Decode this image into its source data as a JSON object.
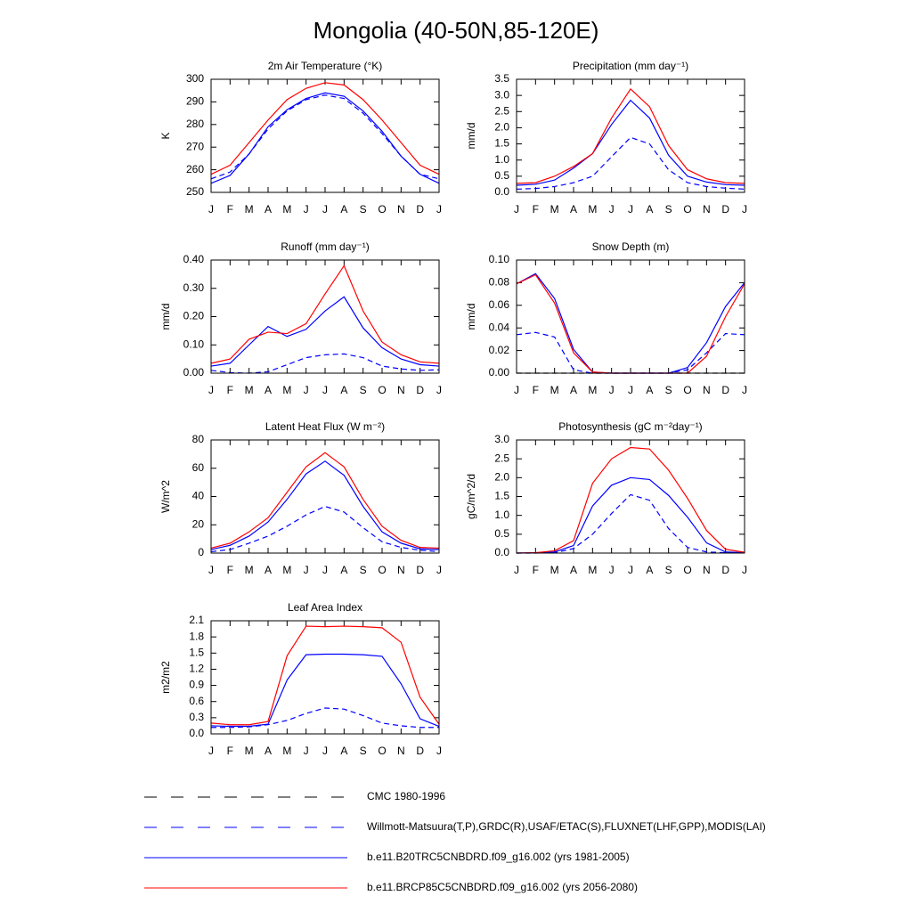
{
  "title": "Mongolia (40-50N,85-120E)",
  "chart_data": [
    {
      "type": "line",
      "title": "2m Air Temperature (°K)",
      "ylabel": "K",
      "categories": [
        "J",
        "F",
        "M",
        "A",
        "M",
        "J",
        "J",
        "A",
        "S",
        "O",
        "N",
        "D",
        "J"
      ],
      "ylim": [
        250,
        300
      ],
      "yticks": [
        250,
        260,
        270,
        280,
        290,
        300
      ],
      "series": [
        {
          "name": "Willmott-Matsuura(T,P),GRDC(R),USAF/ETAC(S),FLUXNET(LHF,GPP),MODIS(LAI)",
          "color": "#0000ff",
          "dash": true,
          "values": [
            256,
            259,
            267,
            278,
            286,
            291,
            293,
            291.5,
            285,
            276,
            266,
            258,
            256
          ]
        },
        {
          "name": "b.e11.B20TRC5CNBDRD.f09_g16.002 (yrs 1981-2005)",
          "color": "#0000ff",
          "dash": false,
          "values": [
            254,
            257.5,
            267,
            279,
            286.5,
            291.5,
            294,
            292.5,
            286,
            277,
            266,
            258,
            254
          ]
        },
        {
          "name": "b.e11.BRCP85C5CNBDRD.f09_g16.002 (yrs 2056-2080)",
          "color": "#ff0000",
          "dash": false,
          "values": [
            258,
            262,
            272,
            282,
            291,
            296,
            298.5,
            297.5,
            291,
            282,
            272,
            262,
            258
          ]
        }
      ]
    },
    {
      "type": "line",
      "title": "Precipitation (mm day⁻¹)",
      "ylabel": "mm/d",
      "categories": [
        "J",
        "F",
        "M",
        "A",
        "M",
        "J",
        "J",
        "A",
        "S",
        "O",
        "N",
        "D",
        "J"
      ],
      "ylim": [
        0,
        3.5
      ],
      "yticks": [
        {
          "value": 0,
          "label": "0.0"
        },
        0.5,
        {
          "value": 1,
          "label": "1.0"
        },
        1.5,
        {
          "value": 2,
          "label": "2.0"
        },
        2.5,
        {
          "value": 3,
          "label": "3.0"
        },
        3.5
      ],
      "series": [
        {
          "name": "Willmott-Matsuura(T,P),GRDC(R),USAF/ETAC(S),FLUXNET(LHF,GPP),MODIS(LAI)",
          "color": "#0000ff",
          "dash": true,
          "values": [
            0.1,
            0.12,
            0.18,
            0.3,
            0.5,
            1.1,
            1.7,
            1.5,
            0.7,
            0.3,
            0.18,
            0.13,
            0.1
          ]
        },
        {
          "name": "b.e11.B20TRC5CNBDRD.f09_g16.002 (yrs 1981-2005)",
          "color": "#0000ff",
          "dash": false,
          "values": [
            0.22,
            0.25,
            0.38,
            0.75,
            1.2,
            2.1,
            2.85,
            2.3,
            1.15,
            0.5,
            0.32,
            0.24,
            0.22
          ]
        },
        {
          "name": "b.e11.BRCP85C5CNBDRD.f09_g16.002 (yrs 2056-2080)",
          "color": "#ff0000",
          "dash": false,
          "values": [
            0.28,
            0.3,
            0.5,
            0.8,
            1.2,
            2.3,
            3.2,
            2.65,
            1.45,
            0.7,
            0.42,
            0.3,
            0.28
          ]
        }
      ]
    },
    {
      "type": "line",
      "title": "Runoff (mm day⁻¹)",
      "ylabel": "mm/d",
      "categories": [
        "J",
        "F",
        "M",
        "A",
        "M",
        "J",
        "J",
        "A",
        "S",
        "O",
        "N",
        "D",
        "J"
      ],
      "ylim": [
        0,
        0.4
      ],
      "yticks": [
        {
          "value": 0,
          "label": "0.00"
        },
        {
          "value": 0.1,
          "label": "0.10"
        },
        {
          "value": 0.2,
          "label": "0.20"
        },
        {
          "value": 0.3,
          "label": "0.30"
        },
        {
          "value": 0.4,
          "label": "0.40"
        }
      ],
      "series": [
        {
          "name": "Willmott-Matsuura(T,P),GRDC(R),USAF/ETAC(S),FLUXNET(LHF,GPP),MODIS(LAI)",
          "color": "#0000ff",
          "dash": true,
          "values": [
            0.01,
            0.002,
            0,
            0.005,
            0.03,
            0.055,
            0.065,
            0.068,
            0.055,
            0.025,
            0.015,
            0.01,
            0.012
          ]
        },
        {
          "name": "b.e11.B20TRC5CNBDRD.f09_g16.002 (yrs 1981-2005)",
          "color": "#0000ff",
          "dash": false,
          "values": [
            0.025,
            0.035,
            0.1,
            0.165,
            0.13,
            0.155,
            0.22,
            0.27,
            0.16,
            0.09,
            0.05,
            0.03,
            0.025
          ]
        },
        {
          "name": "b.e11.BRCP85C5CNBDRD.f09_g16.002 (yrs 2056-2080)",
          "color": "#ff0000",
          "dash": false,
          "values": [
            0.035,
            0.05,
            0.12,
            0.145,
            0.14,
            0.175,
            0.28,
            0.38,
            0.22,
            0.11,
            0.065,
            0.04,
            0.035
          ]
        }
      ]
    },
    {
      "type": "line",
      "title": "Snow Depth (m)",
      "ylabel": "mm/d",
      "categories": [
        "J",
        "F",
        "M",
        "A",
        "M",
        "J",
        "J",
        "A",
        "S",
        "O",
        "N",
        "D",
        "J"
      ],
      "ylim": [
        0,
        0.1
      ],
      "yticks": [
        {
          "value": 0,
          "label": "0.00"
        },
        {
          "value": 0.02,
          "label": "0.02"
        },
        {
          "value": 0.04,
          "label": "0.04"
        },
        {
          "value": 0.06,
          "label": "0.06"
        },
        {
          "value": 0.08,
          "label": "0.08"
        },
        {
          "value": 0.1,
          "label": "0.10"
        }
      ],
      "series": [
        {
          "name": "CMC 1980-1996",
          "color": "#000000",
          "dash": true,
          "values": [
            0,
            0,
            0,
            0,
            0,
            0,
            0,
            0,
            0,
            0,
            0,
            0,
            0
          ]
        },
        {
          "name": "Willmott-Matsuura(T,P),GRDC(R),USAF/ETAC(S),FLUXNET(LHF,GPP),MODIS(LAI)",
          "color": "#0000ff",
          "dash": true,
          "values": [
            0.034,
            0.036,
            0.032,
            0.003,
            0,
            0,
            0,
            0,
            0,
            0.003,
            0.018,
            0.035,
            0.034
          ]
        },
        {
          "name": "b.e11.B20TRC5CNBDRD.f09_g16.002 (yrs 1981-2005)",
          "color": "#0000ff",
          "dash": false,
          "values": [
            0.079,
            0.088,
            0.066,
            0.021,
            0.001,
            0,
            0,
            0,
            0,
            0.005,
            0.027,
            0.059,
            0.08
          ]
        },
        {
          "name": "b.e11.BRCP85C5CNBDRD.f09_g16.002 (yrs 2056-2080)",
          "color": "#ff0000",
          "dash": false,
          "values": [
            0.079,
            0.087,
            0.062,
            0.018,
            0.001,
            0,
            0,
            0,
            0,
            0,
            0.015,
            0.05,
            0.079
          ]
        }
      ]
    },
    {
      "type": "line",
      "title": "Latent Heat Flux (W m⁻²)",
      "ylabel": "W/m^2",
      "categories": [
        "J",
        "F",
        "M",
        "A",
        "M",
        "J",
        "J",
        "A",
        "S",
        "O",
        "N",
        "D",
        "J"
      ],
      "ylim": [
        0,
        80
      ],
      "yticks": [
        0,
        20,
        40,
        60,
        80
      ],
      "series": [
        {
          "name": "Willmott-Matsuura(T,P),GRDC(R),USAF/ETAC(S),FLUXNET(LHF,GPP),MODIS(LAI)",
          "color": "#0000ff",
          "dash": true,
          "values": [
            1,
            2.5,
            7,
            12,
            19,
            27,
            33,
            29,
            18,
            8,
            4,
            2,
            1
          ]
        },
        {
          "name": "b.e11.B20TRC5CNBDRD.f09_g16.002 (yrs 1981-2005)",
          "color": "#0000ff",
          "dash": false,
          "values": [
            2.5,
            5.5,
            12,
            22,
            38,
            56,
            65,
            55,
            33,
            15,
            7,
            3,
            2.5
          ]
        },
        {
          "name": "b.e11.BRCP85C5CNBDRD.f09_g16.002 (yrs 2056-2080)",
          "color": "#ff0000",
          "dash": false,
          "values": [
            3.5,
            7,
            15,
            25,
            43,
            61,
            71,
            61,
            38,
            19,
            9,
            4,
            3.5
          ]
        }
      ]
    },
    {
      "type": "line",
      "title": "Photosynthesis (gC m⁻²day⁻¹)",
      "ylabel": "gC/m^2/d",
      "categories": [
        "J",
        "F",
        "M",
        "A",
        "M",
        "J",
        "J",
        "A",
        "S",
        "O",
        "N",
        "D",
        "J"
      ],
      "ylim": [
        0,
        3
      ],
      "yticks": [
        {
          "value": 0,
          "label": "0.0"
        },
        0.5,
        {
          "value": 1,
          "label": "1.0"
        },
        1.5,
        {
          "value": 2,
          "label": "2.0"
        },
        2.5,
        {
          "value": 3,
          "label": "3.0"
        }
      ],
      "series": [
        {
          "name": "Willmott-Matsuura(T,P),GRDC(R),USAF/ETAC(S),FLUXNET(LHF,GPP),MODIS(LAI)",
          "color": "#0000ff",
          "dash": true,
          "values": [
            0,
            0,
            0.01,
            0.12,
            0.5,
            1.05,
            1.55,
            1.4,
            0.65,
            0.15,
            0.03,
            0.01,
            0
          ]
        },
        {
          "name": "b.e11.B20TRC5CNBDRD.f09_g16.002 (yrs 1981-2005)",
          "color": "#0000ff",
          "dash": false,
          "values": [
            0,
            0.01,
            0.03,
            0.2,
            1.25,
            1.8,
            2,
            1.95,
            1.53,
            0.95,
            0.27,
            0.03,
            0.01
          ]
        },
        {
          "name": "b.e11.BRCP85C5CNBDRD.f09_g16.002 (yrs 2056-2080)",
          "color": "#ff0000",
          "dash": false,
          "values": [
            0,
            0.01,
            0.06,
            0.33,
            1.85,
            2.5,
            2.8,
            2.76,
            2.2,
            1.45,
            0.6,
            0.1,
            0.02
          ]
        }
      ]
    },
    {
      "type": "line",
      "title": "Leaf Area Index",
      "ylabel": "m2/m2",
      "categories": [
        "J",
        "F",
        "M",
        "A",
        "M",
        "J",
        "J",
        "A",
        "S",
        "O",
        "N",
        "D",
        "J"
      ],
      "ylim": [
        0,
        2.1
      ],
      "yticks": [
        {
          "value": 0,
          "label": "0.0"
        },
        0.3,
        0.6,
        0.9,
        1.2,
        1.5,
        1.8,
        2.1
      ],
      "series": [
        {
          "name": "Willmott-Matsuura(T,P),GRDC(R),USAF/ETAC(S),FLUXNET(LHF,GPP),MODIS(LAI)",
          "color": "#0000ff",
          "dash": true,
          "values": [
            0.12,
            0.12,
            0.13,
            0.17,
            0.25,
            0.38,
            0.48,
            0.46,
            0.34,
            0.2,
            0.15,
            0.12,
            0.12
          ]
        },
        {
          "name": "b.e11.B20TRC5CNBDRD.f09_g16.002 (yrs 1981-2005)",
          "color": "#0000ff",
          "dash": false,
          "values": [
            0.15,
            0.14,
            0.14,
            0.18,
            1,
            1.47,
            1.48,
            1.48,
            1.47,
            1.44,
            0.93,
            0.28,
            0.14
          ]
        },
        {
          "name": "b.e11.BRCP85C5CNBDRD.f09_g16.002 (yrs 2056-2080)",
          "color": "#ff0000",
          "dash": false,
          "values": [
            0.2,
            0.17,
            0.17,
            0.23,
            1.45,
            2,
            1.99,
            2,
            1.99,
            1.97,
            1.7,
            0.68,
            0.18
          ]
        }
      ]
    }
  ]
}
